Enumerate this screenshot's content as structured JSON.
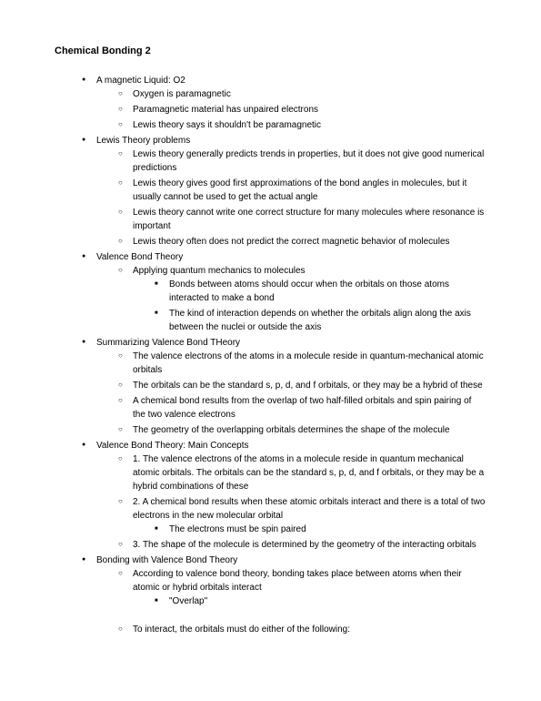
{
  "title": "Chemical Bonding 2",
  "sections": [
    {
      "text": "A magnetic Liquid: O2",
      "children": [
        {
          "text": "Oxygen is paramagnetic"
        },
        {
          "text": "Paramagnetic material has unpaired electrons"
        },
        {
          "text": "Lewis theory says it shouldn't be paramagnetic"
        }
      ]
    },
    {
      "text": "Lewis Theory problems",
      "children": [
        {
          "text": "Lewis theory generally predicts trends in properties, but it does not give good numerical predictions"
        },
        {
          "text": "Lewis theory gives good first approximations of the bond angles in molecules, but it usually cannot be used to get the actual angle"
        },
        {
          "text": "Lewis theory cannot write one correct structure for many molecules where resonance is important"
        },
        {
          "text": "Lewis theory often does not predict the correct magnetic behavior of molecules"
        }
      ]
    },
    {
      "text": "Valence Bond Theory",
      "children": [
        {
          "text": "Applying quantum mechanics to molecules",
          "children": [
            {
              "text": "Bonds between atoms should occur when the orbitals on those atoms interacted to make a bond"
            },
            {
              "text": "The kind of interaction depends on whether the orbitals align along the axis between the nuclei or outside the axis"
            }
          ]
        }
      ]
    },
    {
      "text": "Summarizing Valence Bond THeory",
      "children": [
        {
          "text": "The valence electrons of the atoms in a molecule reside in quantum-mechanical atomic orbitals"
        },
        {
          "text": "The orbitals can be the standard s, p, d, and f orbitals, or they may be a hybrid of these"
        },
        {
          "text": "A chemical bond results from the overlap of two half-filled orbitals and spin pairing of the two valence electrons"
        },
        {
          "text": "The geometry of the overlapping orbitals determines the shape of the molecule"
        }
      ]
    },
    {
      "text": "Valence Bond Theory: Main Concepts",
      "children": [
        {
          "text": "1. The valence electrons of the atoms in a molecule reside in quantum mechanical atomic orbitals. The orbitals can be the standard s, p, d, and f orbitals, or they may be a hybrid combinations of these"
        },
        {
          "text": "2. A chemical bond results when these atomic orbitals interact and there is a total of two electrons in the new molecular orbital",
          "children": [
            {
              "text": "The electrons must be spin paired"
            }
          ]
        },
        {
          "text": "3. The shape of the molecule is determined by the geometry of the interacting orbitals"
        }
      ]
    },
    {
      "text": "Bonding with Valence Bond Theory",
      "children": [
        {
          "text": "According to valence bond theory, bonding takes place between atoms when their atomic or hybrid orbitals interact",
          "children": [
            {
              "text": "\"Overlap\""
            }
          ]
        },
        {
          "spacer": true
        },
        {
          "text": "To interact, the orbitals must do either of the following:"
        }
      ]
    }
  ]
}
